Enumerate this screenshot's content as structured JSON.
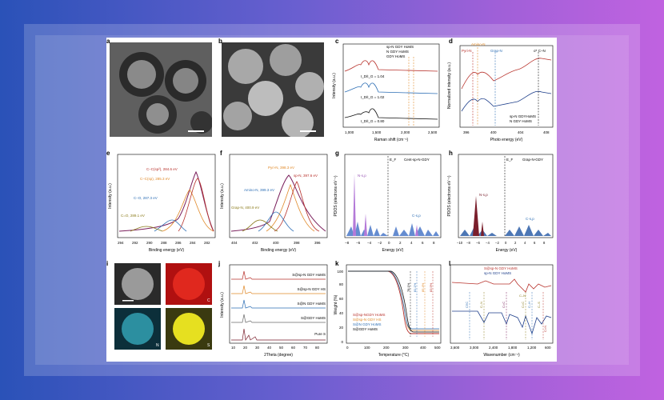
{
  "figure": {
    "panel_labels": [
      "a",
      "b",
      "c",
      "d",
      "e",
      "f",
      "g",
      "h",
      "i",
      "j",
      "k",
      "l"
    ],
    "c": {
      "ylabel": "Intensity (a.u.)",
      "xlabel": "Raman shift (cm⁻¹)",
      "ticks": [
        "1,000",
        "1,500",
        "2,000",
        "2,500"
      ],
      "legend": [
        "sp-N GDY HoMS",
        "N GDY HoMS",
        "GDY HoMS"
      ],
      "ratios": [
        "I_D/I_G = 1.04",
        "I_D/I_G = 1.02",
        "I_D/I_G = 0.80"
      ],
      "colors": [
        "#c0392b",
        "#2e6fb5",
        "#111111"
      ]
    },
    "d": {
      "ylabel": "Normalized intensity (a.u.)",
      "xlabel": "Photo energy (eV)",
      "ticks": [
        "396",
        "400",
        "404",
        "408"
      ],
      "peaks": [
        "Amino-N",
        "Pyri-N",
        "Grap-N",
        "σ* C–N"
      ],
      "legend": [
        "sp-N GDYHoMS",
        "N GDY HoMS"
      ]
    },
    "e": {
      "ylabel": "Intensity (a.u.)",
      "xlabel": "Binding energy (eV)",
      "ticks": [
        "294",
        "292",
        "290",
        "288",
        "286",
        "284",
        "282"
      ],
      "peaks": [
        "C–C(sp²), 284.6 eV",
        "C–C(sp), 285.3 eV",
        "C–O, 287.3 eV",
        "C=O, 289.1 eV"
      ]
    },
    "f": {
      "ylabel": "Intensity (a.u.)",
      "xlabel": "Binding energy (eV)",
      "ticks": [
        "404",
        "402",
        "400",
        "398",
        "396"
      ],
      "peaks": [
        "Pyri-N, 398.3 eV",
        "sp-N, 397.6 eV",
        "Amino-N, 399.3 eV",
        "Grap-N, 400.9 eV"
      ]
    },
    "g": {
      "ylabel": "PDOS (electrons eV⁻¹)",
      "xlabel": "Energy (eV)",
      "title": "Cent-sp-N-GDY",
      "ticks": [
        "−8",
        "−6",
        "−4",
        "−2",
        "0",
        "2",
        "4",
        "6",
        "8"
      ],
      "ef": "E_F",
      "labels": [
        "N-s,p",
        "C-s,p"
      ]
    },
    "h": {
      "ylabel": "PDOS (electrons eV⁻¹)",
      "xlabel": "Energy (eV)",
      "title": "Grap-N-GDY",
      "ticks": [
        "−10",
        "−8",
        "−6",
        "−4",
        "−2",
        "0",
        "2",
        "4",
        "6",
        "8"
      ],
      "ef": "E_F",
      "labels": [
        "N-s,p",
        "C-s,p"
      ]
    },
    "i": {
      "labels": [
        "C",
        "N",
        "S"
      ]
    },
    "j": {
      "ylabel": "Intensity (a.u.)",
      "xlabel": "2Theta (degree)",
      "ticks": [
        "10",
        "20",
        "30",
        "40",
        "50",
        "60",
        "70",
        "80"
      ],
      "series": [
        "S@sp-N GDY HoMS",
        "S@sp-N GDY HS",
        "S@N GDY HoMS",
        "S@GDY HoMS",
        "Pure S"
      ]
    },
    "k": {
      "ylabel": "Weight (%)",
      "xlabel": "Temperature (°C)",
      "xticks": [
        "0",
        "100",
        "200",
        "300",
        "400",
        "500"
      ],
      "yticks": [
        "0",
        "20",
        "40",
        "60",
        "80",
        "100"
      ],
      "pcts": [
        "78.1%",
        "81.1%",
        "85.4%",
        "83.9%"
      ],
      "legend": [
        "S@sp-NGDY HoMS",
        "S@sp-N GDY HS",
        "S@N GDY HoMS",
        "S@GDY HoMS"
      ]
    },
    "l": {
      "xlabel": "Wavenumber (cm⁻¹)",
      "ticks": [
        "3,600",
        "3,000",
        "2,400",
        "1,800",
        "1,200",
        "600"
      ],
      "legend": [
        "S@sp-N GDY HoMS",
        "sp-N GDY HoMS"
      ],
      "labels": [
        "C≡C",
        "C–N",
        "C=C",
        "C–N",
        "C=C",
        "C–H",
        "C–S",
        "C=N"
      ]
    }
  },
  "colors": {
    "red": "#b8322c",
    "blue": "#2e6fb5",
    "orange": "#e08a2a",
    "black": "#111111",
    "purple": "#9b59b6",
    "navy": "#1d3e8a"
  }
}
